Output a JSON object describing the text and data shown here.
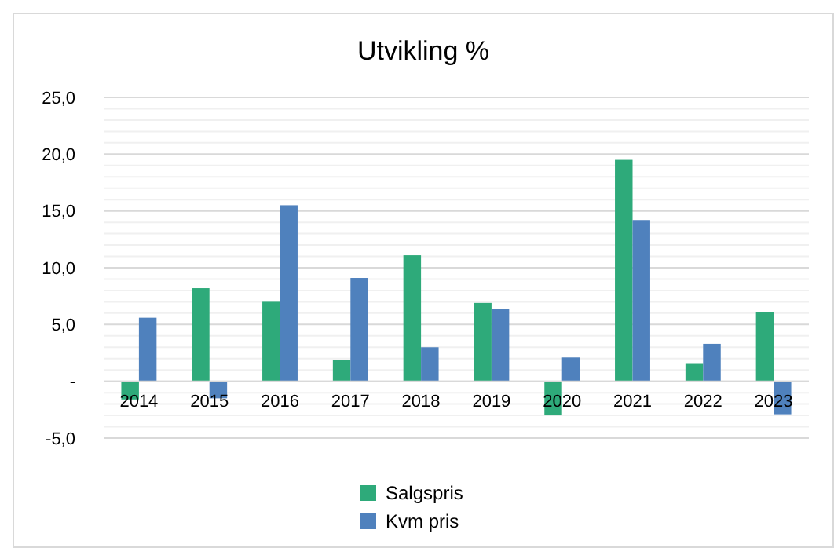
{
  "chart_data": {
    "type": "bar",
    "title": "Utvikling  %",
    "categories": [
      "2014",
      "2015",
      "2016",
      "2017",
      "2018",
      "2019",
      "2020",
      "2021",
      "2022",
      "2023"
    ],
    "series": [
      {
        "name": "Salgspris",
        "color": "#2eaa7a",
        "values": [
          -1.6,
          8.2,
          7.0,
          1.9,
          11.1,
          6.9,
          -3.0,
          19.5,
          1.6,
          6.1
        ]
      },
      {
        "name": "Kvm pris",
        "color": "#4f81bd",
        "values": [
          5.6,
          -1.5,
          15.5,
          9.1,
          3.0,
          6.4,
          2.1,
          14.2,
          3.3,
          -2.9
        ]
      }
    ],
    "ylim": [
      -5,
      25
    ],
    "yticks": [
      {
        "value": -5,
        "label": "-5,0"
      },
      {
        "value": -4,
        "label": null
      },
      {
        "value": -3,
        "label": null
      },
      {
        "value": -2,
        "label": null
      },
      {
        "value": -1,
        "label": null
      },
      {
        "value": 0,
        "label": "-"
      },
      {
        "value": 1,
        "label": null
      },
      {
        "value": 2,
        "label": null
      },
      {
        "value": 3,
        "label": null
      },
      {
        "value": 4,
        "label": null
      },
      {
        "value": 5,
        "label": "5,0"
      },
      {
        "value": 6,
        "label": null
      },
      {
        "value": 7,
        "label": null
      },
      {
        "value": 8,
        "label": null
      },
      {
        "value": 9,
        "label": null
      },
      {
        "value": 10,
        "label": "10,0"
      },
      {
        "value": 11,
        "label": null
      },
      {
        "value": 12,
        "label": null
      },
      {
        "value": 13,
        "label": null
      },
      {
        "value": 14,
        "label": null
      },
      {
        "value": 15,
        "label": "15,0"
      },
      {
        "value": 16,
        "label": null
      },
      {
        "value": 17,
        "label": null
      },
      {
        "value": 18,
        "label": null
      },
      {
        "value": 19,
        "label": null
      },
      {
        "value": 20,
        "label": "20,0"
      },
      {
        "value": 21,
        "label": null
      },
      {
        "value": 22,
        "label": null
      },
      {
        "value": 23,
        "label": null
      },
      {
        "value": 24,
        "label": null
      },
      {
        "value": 25,
        "label": "25,0"
      }
    ],
    "grid": "y",
    "legend": "bottom"
  }
}
